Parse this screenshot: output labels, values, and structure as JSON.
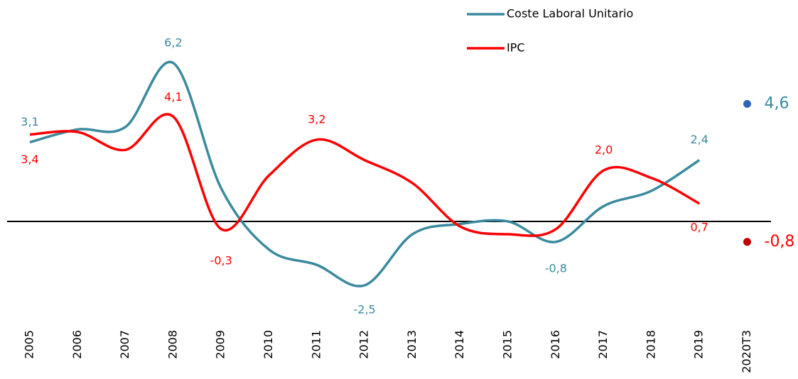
{
  "chart_data": {
    "type": "line",
    "categories": [
      "2005",
      "2006",
      "2007",
      "2008",
      "2009",
      "2010",
      "2011",
      "2012",
      "2013",
      "2014",
      "2015",
      "2016",
      "2017",
      "2018",
      "2019",
      "2020T3"
    ],
    "series": [
      {
        "name": "Coste Laboral Unitario",
        "color": "#3a8a9e",
        "last_point_color": "#2f62b8",
        "values": [
          3.1,
          3.6,
          3.7,
          6.2,
          1.3,
          -1.1,
          -1.7,
          -2.5,
          -0.5,
          -0.1,
          0.0,
          -0.8,
          0.6,
          1.2,
          2.4,
          4.6
        ],
        "value_labels": [
          "3,1",
          null,
          null,
          "6,2",
          null,
          null,
          null,
          "-2,5",
          null,
          null,
          null,
          "-0,8",
          null,
          null,
          "2,4",
          "4,6"
        ]
      },
      {
        "name": "IPC",
        "color": "#ff0000",
        "last_point_color": "#c00000",
        "values": [
          3.4,
          3.5,
          2.8,
          4.1,
          -0.3,
          1.8,
          3.2,
          2.4,
          1.5,
          -0.2,
          -0.5,
          -0.3,
          2.0,
          1.7,
          0.7,
          -0.8
        ],
        "value_labels": [
          "3,4",
          null,
          null,
          "4,1",
          "-0,3",
          null,
          "3,2",
          null,
          null,
          null,
          null,
          null,
          "2,0",
          null,
          "0,7",
          "-0,8"
        ]
      }
    ],
    "last_point_detached": true,
    "ylim": [
      -3.5,
      7
    ],
    "legend": "top-right"
  }
}
